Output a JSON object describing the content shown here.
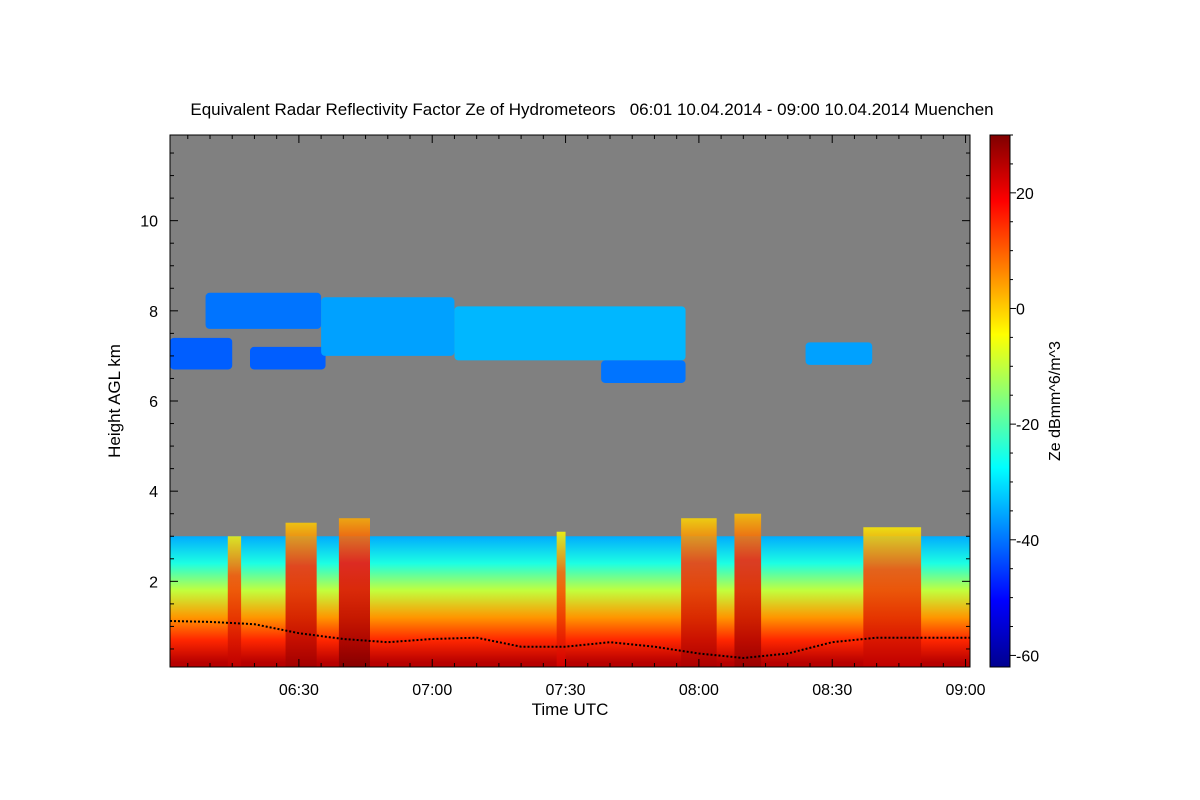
{
  "chart_data": {
    "type": "heatmap",
    "title": "Equivalent Radar Reflectivity Factor Ze of Hydrometeors   06:01 10.04.2014 - 09:00 10.04.2014 Muenchen",
    "xlabel": "Time UTC",
    "ylabel": "Height AGL km",
    "colorbar_label": "Ze dBmm^6/m^3",
    "x_range_minutes": [
      361,
      541
    ],
    "x_ticks": [
      {
        "minutes": 390,
        "label": "06:30"
      },
      {
        "minutes": 420,
        "label": "07:00"
      },
      {
        "minutes": 450,
        "label": "07:30"
      },
      {
        "minutes": 480,
        "label": "08:00"
      },
      {
        "minutes": 510,
        "label": "08:30"
      },
      {
        "minutes": 540,
        "label": "09:00"
      }
    ],
    "ylim": [
      0.1,
      11.9
    ],
    "y_ticks": [
      2,
      4,
      6,
      8,
      10
    ],
    "y_tick_labels": [
      "2",
      "4",
      "6",
      "8",
      "10"
    ],
    "color_range": [
      -62,
      30
    ],
    "colorbar_ticks": [
      20,
      0,
      -20,
      -40,
      -60
    ],
    "colorbar_tick_labels": [
      "20",
      "0",
      "-20",
      "-40",
      "-60"
    ],
    "no_signal_color": "#808080",
    "colormap": "jet",
    "upper_cloud_layers": [
      {
        "start": 361,
        "end": 375,
        "base_km": 6.7,
        "top_km": 7.4,
        "ze_dbz": -42
      },
      {
        "start": 369,
        "end": 395,
        "base_km": 7.6,
        "top_km": 8.4,
        "ze_dbz": -40
      },
      {
        "start": 379,
        "end": 396,
        "base_km": 6.7,
        "top_km": 7.2,
        "ze_dbz": -42
      },
      {
        "start": 395,
        "end": 425,
        "base_km": 7.0,
        "top_km": 8.3,
        "ze_dbz": -36
      },
      {
        "start": 425,
        "end": 477,
        "base_km": 6.9,
        "top_km": 8.1,
        "ze_dbz": -34
      },
      {
        "start": 458,
        "end": 477,
        "base_km": 6.4,
        "top_km": 6.9,
        "ze_dbz": -40
      },
      {
        "start": 504,
        "end": 519,
        "base_km": 6.8,
        "top_km": 7.3,
        "ze_dbz": -36
      }
    ],
    "lower_precip_layer": {
      "start": 361,
      "end": 541,
      "top_km": 3.0,
      "profile_ze_dbz": [
        {
          "height_km": 0.2,
          "ze_dbz": 25
        },
        {
          "height_km": 0.7,
          "ze_dbz": 15
        },
        {
          "height_km": 1.2,
          "ze_dbz": 5
        },
        {
          "height_km": 1.8,
          "ze_dbz": -10
        },
        {
          "height_km": 2.4,
          "ze_dbz": -25
        },
        {
          "height_km": 3.0,
          "ze_dbz": -35
        }
      ],
      "convective_cores": [
        {
          "start": 374,
          "end": 377,
          "top_km": 3.0,
          "ze_dbz": 12
        },
        {
          "start": 387,
          "end": 394,
          "top_km": 3.3,
          "ze_dbz": 15
        },
        {
          "start": 399,
          "end": 406,
          "top_km": 3.4,
          "ze_dbz": 18
        },
        {
          "start": 448,
          "end": 450,
          "top_km": 3.1,
          "ze_dbz": 10
        },
        {
          "start": 476,
          "end": 484,
          "top_km": 3.4,
          "ze_dbz": 14
        },
        {
          "start": 488,
          "end": 494,
          "top_km": 3.5,
          "ze_dbz": 16
        },
        {
          "start": 517,
          "end": 530,
          "top_km": 3.2,
          "ze_dbz": 12
        }
      ]
    },
    "cloud_base_km": [
      [
        361,
        1.12
      ],
      [
        370,
        1.1
      ],
      [
        380,
        1.05
      ],
      [
        390,
        0.85
      ],
      [
        400,
        0.72
      ],
      [
        410,
        0.65
      ],
      [
        420,
        0.72
      ],
      [
        430,
        0.75
      ],
      [
        440,
        0.55
      ],
      [
        450,
        0.55
      ],
      [
        460,
        0.65
      ],
      [
        470,
        0.55
      ],
      [
        480,
        0.4
      ],
      [
        490,
        0.3
      ],
      [
        500,
        0.4
      ],
      [
        510,
        0.65
      ],
      [
        520,
        0.75
      ],
      [
        530,
        0.75
      ],
      [
        541,
        0.75
      ]
    ]
  }
}
